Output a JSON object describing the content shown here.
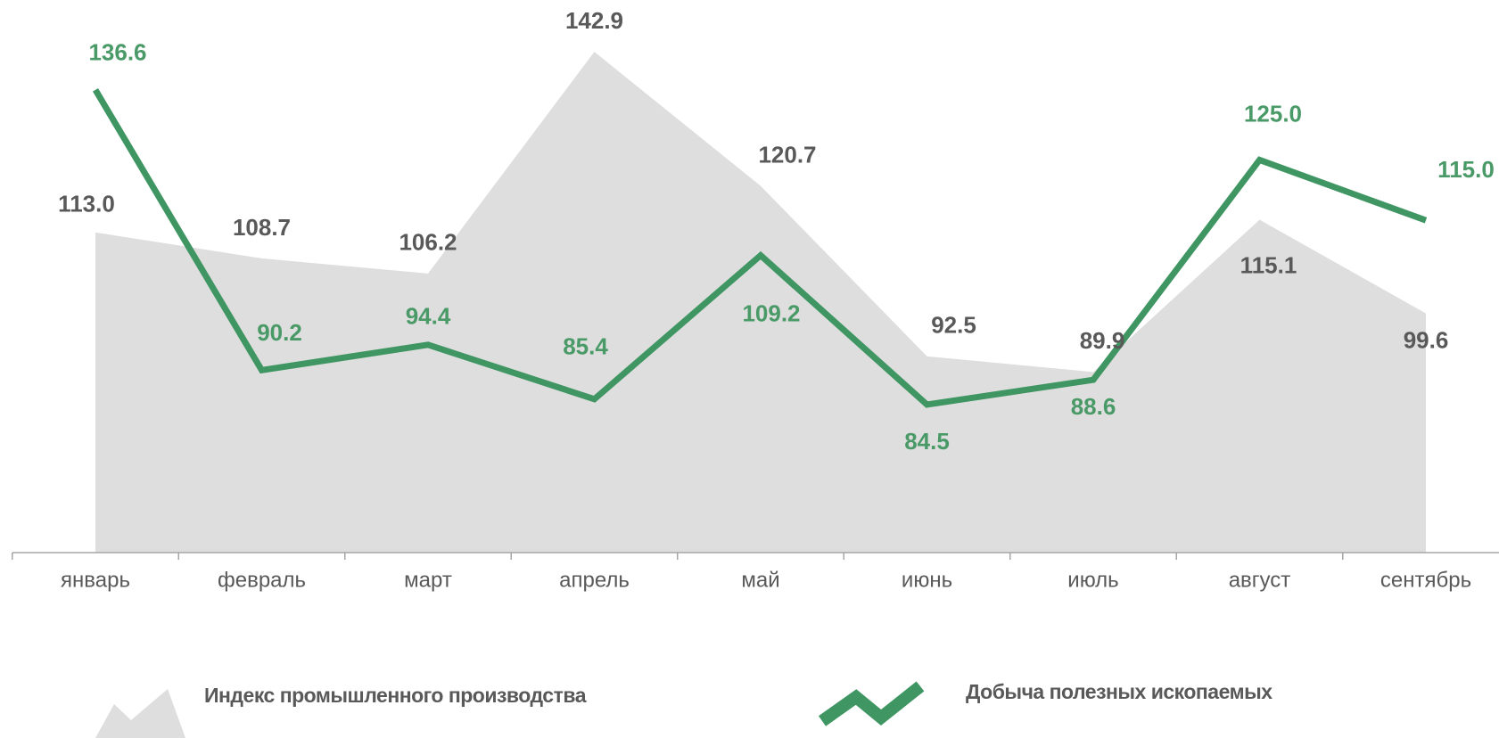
{
  "chart_data": {
    "type": "area-line",
    "categories": [
      "январь",
      "февраль",
      "март",
      "апрель",
      "май",
      "июнь",
      "июль",
      "август",
      "сентябрь"
    ],
    "ylim": [
      60,
      150
    ],
    "legend": "bottom",
    "series": [
      {
        "name": "Индекс промышленного производства",
        "type": "area",
        "color": "#dedede",
        "label_color": "#595959",
        "values": [
          113.0,
          108.7,
          106.2,
          142.9,
          120.7,
          92.5,
          89.9,
          115.1,
          99.6
        ],
        "value_labels": [
          "113.0",
          "108.7",
          "106.2",
          "142.9",
          "120.7",
          "92.5",
          "89.9",
          "115.1",
          "99.6"
        ]
      },
      {
        "name": "Добыча полезных ископаемых",
        "type": "line",
        "color": "#3f9662",
        "label_color": "#4a9a68",
        "values": [
          136.6,
          90.2,
          94.4,
          85.4,
          109.2,
          84.5,
          88.6,
          125,
          115
        ],
        "value_labels": [
          "136.6",
          "90.2",
          "94.4",
          "85.4",
          "109.2",
          "84.5",
          "88.6",
          "125.0",
          "115.0"
        ]
      }
    ]
  }
}
